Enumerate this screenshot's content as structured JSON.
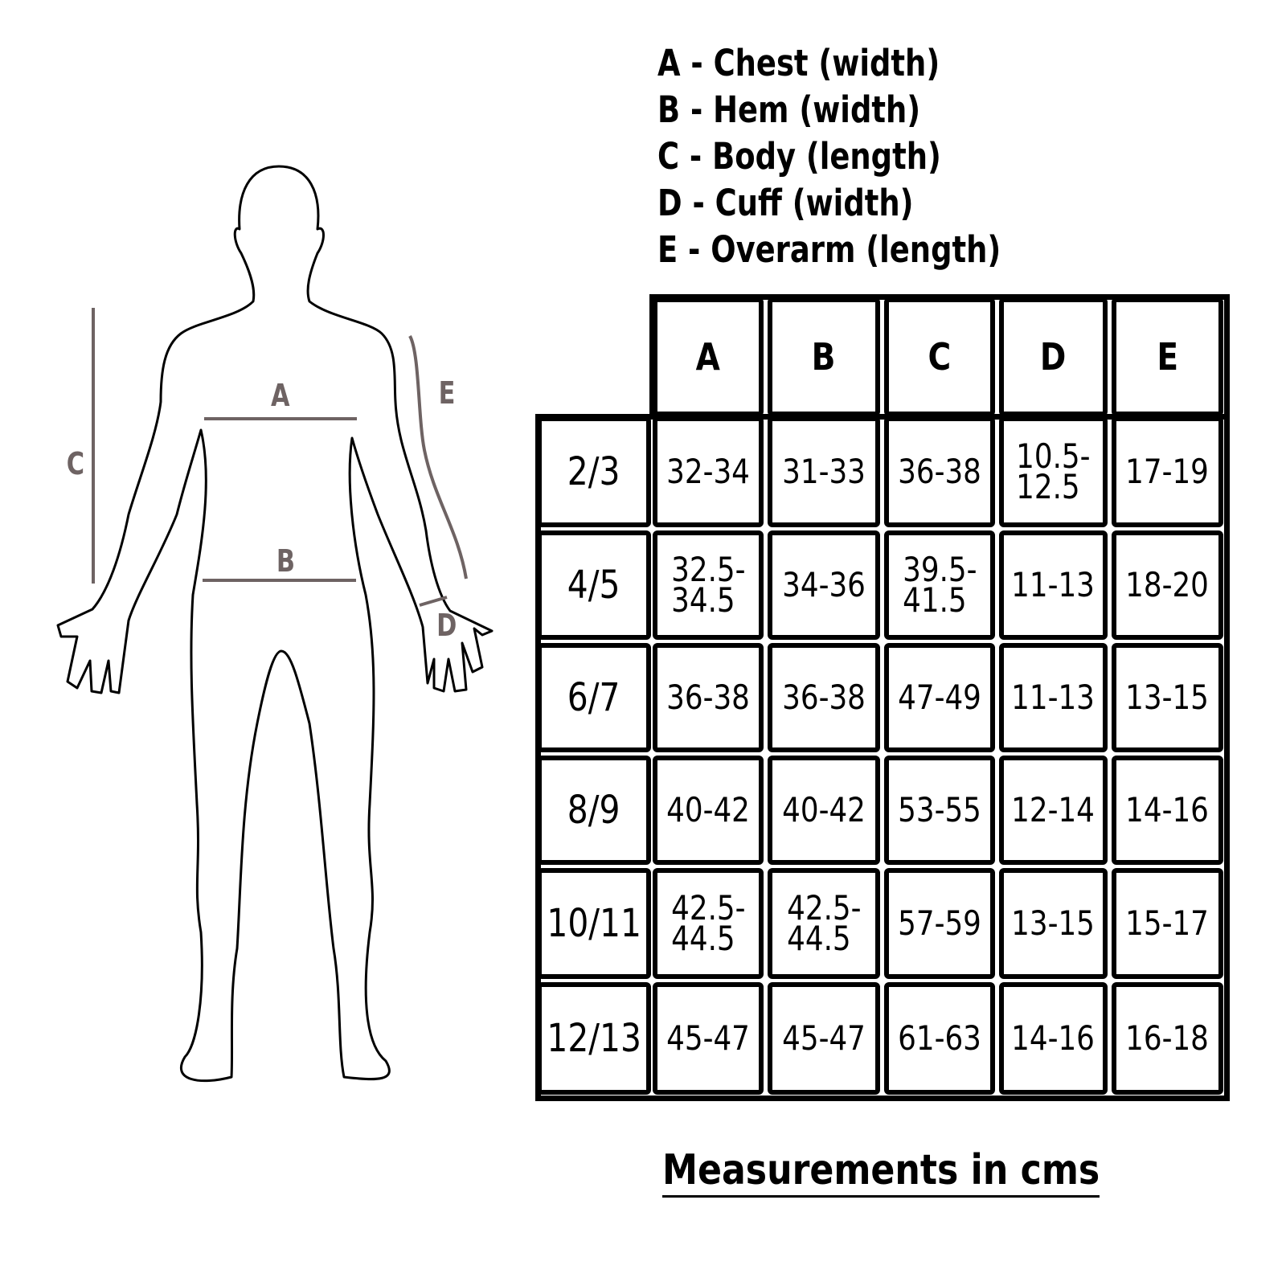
{
  "figure_labels": {
    "A": "A",
    "B": "B",
    "C": "C",
    "D": "D",
    "E": "E"
  },
  "legend": [
    "A - Chest (width)",
    "B - Hem (width)",
    "C - Body (length)",
    "D - Cuff (width)",
    "E - Overarm (length)"
  ],
  "table": {
    "columns": [
      "A",
      "B",
      "C",
      "D",
      "E"
    ],
    "rows": [
      {
        "size": "2/3",
        "values": [
          "32-34",
          "31-33",
          "36-38",
          "10.5-\n12.5",
          "17-19"
        ]
      },
      {
        "size": "4/5",
        "values": [
          "32.5-\n34.5",
          "34-36",
          "39.5-\n41.5",
          "11-13",
          "18-20"
        ]
      },
      {
        "size": "6/7",
        "values": [
          "36-38",
          "36-38",
          "47-49",
          "11-13",
          "13-15"
        ]
      },
      {
        "size": "8/9",
        "values": [
          "40-42",
          "40-42",
          "53-55",
          "12-14",
          "14-16"
        ]
      },
      {
        "size": "10/11",
        "values": [
          "42.5-\n44.5",
          "42.5-\n44.5",
          "57-59",
          "13-15",
          "15-17"
        ]
      },
      {
        "size": "12/13",
        "values": [
          "45-47",
          "45-47",
          "61-63",
          "14-16",
          "16-18"
        ]
      }
    ]
  },
  "footer": "Measurements in cms",
  "colors": {
    "measure_line": "#6e6363",
    "outline": "#000000"
  }
}
